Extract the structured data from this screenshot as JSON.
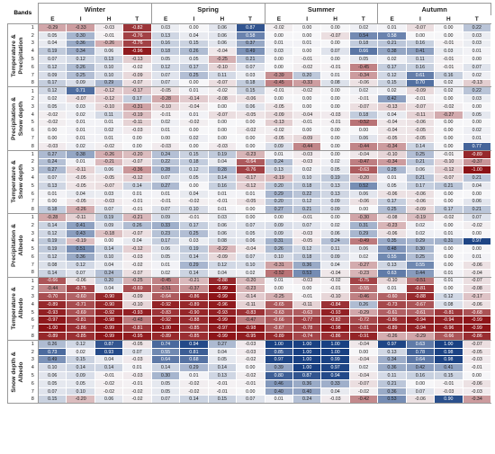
{
  "columns": {
    "bands_label": "Bands",
    "seasons": [
      "Winter",
      "Spring",
      "Summer",
      "Autumn"
    ],
    "subcols": [
      "E",
      "I",
      "H",
      "T"
    ]
  },
  "colors": {
    "positive_strong": "#1f4e8c",
    "negative_strong": "#9b1b1b",
    "neutral": "#f3f4f6"
  },
  "groups": [
    {
      "label": "Temperature & Precipitation",
      "rows": [
        [
          -0.29,
          -0.33,
          -0.03,
          -0.82,
          0.03,
          -0.0,
          0.06,
          0.87,
          -0.02,
          0.0,
          0.0,
          0.02,
          0.01,
          -0.07,
          0.0,
          0.22
        ],
        [
          0.05,
          0.3,
          -0.01,
          -0.76,
          0.13,
          0.04,
          0.06,
          0.58,
          0.0,
          -0.0,
          -0.07,
          0.54,
          0.58,
          0.0,
          0.0,
          0.03
        ],
        [
          0.04,
          0.36,
          -0.26,
          -0.76,
          0.16,
          0.15,
          0.06,
          0.37,
          0.01,
          0.01,
          0.0,
          0.18,
          0.21,
          0.16,
          -0.01,
          0.03
        ],
        [
          0.19,
          0.34,
          0.06,
          -0.96,
          0.18,
          0.26,
          -0.04,
          0.49,
          0.03,
          0.0,
          0.07,
          0.66,
          0.38,
          0.41,
          0.03,
          0.01
        ],
        [
          0.07,
          0.12,
          0.13,
          -0.13,
          0.05,
          0.05,
          -0.25,
          0.21,
          -0.0,
          -0.01,
          0.0,
          0.05,
          0.02,
          0.11,
          -0.01,
          -0.0
        ],
        [
          0.12,
          0.26,
          0.1,
          -0.02,
          0.12,
          0.17,
          -0.1,
          0.07,
          0.0,
          -0.02,
          -0.01,
          -0.45,
          0.17,
          0.16,
          -0.01,
          0.07
        ],
        [
          0.09,
          0.25,
          0.1,
          -0.09,
          0.07,
          0.25,
          0.11,
          0.03,
          -0.39,
          0.2,
          0.01,
          -0.34,
          0.12,
          0.61,
          0.16,
          0.02
        ],
        [
          0.17,
          0.09,
          0.29,
          -0.07,
          0.07,
          0.0,
          -0.07,
          0.18,
          -0.45,
          -0.33,
          0.08,
          -0.06,
          0.15,
          0.7,
          0.02,
          -0.13
        ]
      ]
    },
    {
      "label": "Precipitation & Snow depth",
      "rows": [
        [
          0.12,
          0.71,
          -0.12,
          -0.17,
          -0.05,
          0.01,
          -0.02,
          0.15,
          -0.01,
          -0.02,
          0.0,
          0.02,
          0.02,
          -0.09,
          0.02,
          0.22
        ],
        [
          0.02,
          -0.07,
          -0.12,
          0.17,
          -0.28,
          -0.14,
          -0.08,
          -0.06,
          -0.0,
          -0.0,
          0.0,
          -0.01,
          0.42,
          -0.01,
          0.0,
          0.03
        ],
        [
          0.05,
          0.03,
          -0.1,
          -0.31,
          -0.1,
          -0.04,
          0.0,
          0.06,
          -0.05,
          -0.0,
          0.0,
          -0.07,
          -0.13,
          -0.07,
          -0.02,
          0.0
        ],
        [
          -0.02,
          0.02,
          0.11,
          -0.19,
          -0.01,
          0.01,
          -0.07,
          -0.05,
          -0.09,
          -0.04,
          -0.03,
          0.18,
          0.04,
          -0.11,
          -0.27,
          0.05
        ],
        [
          -0.02,
          0.01,
          0.01,
          -0.11,
          0.02,
          -0.02,
          -0.0,
          -0.0,
          -0.13,
          -0.01,
          -0.01,
          -0.52,
          -0.04,
          -0.06,
          -0.0,
          -0.0
        ],
        [
          0.0,
          0.01,
          0.02,
          -0.03,
          0.01,
          -0.0,
          -0.0,
          -0.02,
          -0.02,
          -0.0,
          -0.0,
          -0.0,
          -0.04,
          -0.05,
          -0.0,
          0.02
        ],
        [
          0.0,
          0.01,
          0.01,
          -0.0,
          -0.0,
          0.02,
          0.0,
          -0.0,
          -0.05,
          -0.09,
          0.0,
          0.06,
          -0.05,
          -0.05,
          0.0,
          0.01
        ],
        [
          -0.03,
          0.02,
          -0.02,
          -0.0,
          -0.03,
          0.0,
          -0.03,
          0.0,
          0.09,
          -0.44,
          0.0,
          -0.44,
          -0.34,
          0.14,
          0.0,
          0.77
        ]
      ]
    },
    {
      "label": "Temperature & Snow depth",
      "rows": [
        [
          0.27,
          0.38,
          -0.26,
          -0.2,
          0.24,
          0.15,
          0.19,
          -0.23,
          0.01,
          -0.03,
          0.0,
          -0.04,
          -0.1,
          0.25,
          -0.01,
          -0.89
        ],
        [
          0.24,
          0.01,
          -0.21,
          -0.07,
          0.22,
          0.18,
          0.04,
          -0.64,
          0.24,
          -0.03,
          0.02,
          -0.47,
          -0.34,
          0.21,
          -0.1,
          -0.37
        ],
        [
          0.27,
          -0.11,
          0.06,
          -0.36,
          0.28,
          0.12,
          0.28,
          -0.76,
          0.13,
          0.02,
          0.05,
          -0.63,
          0.28,
          0.06,
          -0.12,
          -1.0
        ],
        [
          0.07,
          -0.05,
          -0.05,
          -0.12,
          0.07,
          0.05,
          0.14,
          -0.17,
          -0.19,
          0.1,
          0.19,
          -0.2,
          0.01,
          0.21,
          -0.07,
          0.21
        ],
        [
          0.13,
          -0.05,
          -0.07,
          0.14,
          0.27,
          0.0,
          0.16,
          -0.12,
          0.2,
          0.18,
          0.13,
          0.52,
          0.05,
          0.17,
          0.21,
          0.04
        ],
        [
          0.01,
          0.04,
          0.03,
          0.01,
          0.01,
          0.04,
          0.01,
          0.01,
          0.29,
          0.22,
          0.13,
          0.06,
          -0.06,
          -0.06,
          0.0,
          0.0
        ],
        [
          0.0,
          -0.05,
          -0.03,
          -0.01,
          -0.01,
          -0.02,
          -0.01,
          -0.05,
          0.2,
          0.12,
          0.09,
          -0.06,
          0.17,
          -0.06,
          0.0,
          0.06
        ],
        [
          0.18,
          -0.26,
          0.07,
          -0.01,
          0.07,
          0.1,
          0.01,
          -0.0,
          0.27,
          0.21,
          0.09,
          -0.0,
          0.25,
          -0.09,
          0.17,
          0.21
        ]
      ]
    },
    {
      "label": "Precipitation & Albedo",
      "rows": [
        [
          -0.28,
          -0.11,
          0.19,
          -0.21,
          0.09,
          -0.01,
          0.03,
          0.0,
          -0.0,
          -0.01,
          0.0,
          -0.3,
          -0.08,
          -0.19,
          -0.02,
          0.07
        ],
        [
          0.14,
          0.41,
          0.09,
          0.26,
          0.33,
          0.17,
          0.06,
          0.07,
          0.09,
          0.07,
          0.02,
          0.31,
          -0.23,
          0.02,
          -0.0,
          -0.02
        ],
        [
          0.12,
          0.43,
          -0.18,
          -0.07,
          0.23,
          0.25,
          0.06,
          0.05,
          0.09,
          -0.03,
          0.06,
          0.29,
          -0.06,
          0.02,
          0.01,
          -0.0
        ],
        [
          0.19,
          -0.19,
          0.0,
          0.04,
          0.17,
          0.03,
          0.08,
          0.06,
          0.31,
          -0.05,
          0.24,
          -0.49,
          0.35,
          0.29,
          0.31,
          0.97
        ],
        [
          0.19,
          0.51,
          0.14,
          -0.12,
          0.06,
          0.19,
          -0.22,
          -0.04,
          0.26,
          0.12,
          0.11,
          0.06,
          0.48,
          0.3,
          -0.0,
          0.0
        ],
        [
          0.12,
          0.36,
          0.1,
          -0.03,
          0.05,
          0.14,
          -0.09,
          0.07,
          0.1,
          0.18,
          0.09,
          0.02,
          0.55,
          0.25,
          0.0,
          0.01
        ],
        [
          0.08,
          0.12,
          0.04,
          -0.02,
          0.01,
          0.29,
          0.12,
          0.1,
          -0.31,
          0.36,
          0.04,
          -0.27,
          0.13,
          0.55,
          -0.0,
          -0.06
        ],
        [
          0.14,
          0.07,
          0.24,
          -0.07,
          0.02,
          0.14,
          0.04,
          0.02,
          -0.52,
          0.53,
          -0.04,
          -0.23,
          0.63,
          0.44,
          0.01,
          -0.04
        ]
      ]
    },
    {
      "label": "Temperature & Albedo",
      "rows": [
        [
          -0.66,
          -0.06,
          0.2,
          -0.25,
          -0.45,
          -0.21,
          -0.88,
          -0.2,
          0.01,
          -0.03,
          -0.02,
          -0.75,
          -0.1,
          -0.51,
          0.01,
          -0.07
        ],
        [
          -0.44,
          -0.75,
          0.04,
          -0.69,
          -0.51,
          -0.37,
          -0.99,
          -0.23,
          0.0,
          -0.0,
          -0.01,
          -0.55,
          0.01,
          -0.81,
          0.0,
          -0.08
        ],
        [
          -0.7,
          -0.6,
          -0.9,
          -0.09,
          -0.64,
          -0.86,
          -0.99,
          -0.14,
          -0.25,
          -0.01,
          -0.1,
          -0.46,
          -0.6,
          -0.88,
          0.12,
          -0.17
        ],
        [
          -0.89,
          -0.71,
          -0.9,
          -0.1,
          -0.92,
          -0.89,
          -0.96,
          -0.11,
          -0.65,
          -0.11,
          -0.84,
          0.26,
          -0.73,
          -0.67,
          0.08,
          -0.06
        ],
        [
          -0.93,
          -0.69,
          -0.92,
          -0.93,
          -0.83,
          -0.9,
          -0.93,
          -0.83,
          -0.63,
          -0.63,
          -0.93,
          -0.29,
          -0.61,
          -0.61,
          -0.81,
          -0.68
        ],
        [
          -0.97,
          -0.81,
          -0.98,
          -0.48,
          -0.92,
          -0.88,
          -0.99,
          -0.47,
          -0.66,
          -0.77,
          -0.82,
          -0.72,
          -0.86,
          -0.94,
          -0.94,
          -0.99
        ],
        [
          -1.0,
          -0.86,
          -0.99,
          -0.81,
          -1.0,
          -0.85,
          -0.97,
          -0.98,
          -0.67,
          -0.78,
          -0.98,
          -0.81,
          -0.89,
          -0.94,
          -0.96,
          -0.99
        ],
        [
          -0.89,
          -0.85,
          -0.99,
          -0.95,
          -0.89,
          -0.85,
          -0.99,
          -0.95,
          -0.89,
          -0.74,
          -0.86,
          -0.91,
          -0.26,
          -0.29,
          -0.66,
          -0.86
        ]
      ]
    },
    {
      "label": "Snow depth & Albedo",
      "rows": [
        [
          0.26,
          0.12,
          0.87,
          -0.05,
          0.74,
          0.94,
          0.27,
          -0.03,
          1.0,
          1.0,
          1.0,
          -0.04,
          0.97,
          0.63,
          1.0,
          -0.07
        ],
        [
          0.73,
          0.02,
          0.93,
          0.07,
          0.55,
          0.81,
          0.04,
          -0.03,
          0.85,
          1.0,
          1.0,
          -0.0,
          0.13,
          0.78,
          0.98,
          -0.05
        ],
        [
          0.49,
          0.15,
          0.04,
          -0.03,
          0.64,
          0.68,
          0.05,
          -0.02,
          0.97,
          1.0,
          0.99,
          -0.04,
          0.34,
          0.64,
          0.98,
          -0.03
        ],
        [
          0.1,
          0.14,
          0.14,
          0.01,
          0.14,
          0.29,
          0.14,
          -0.0,
          0.39,
          1.0,
          0.97,
          0.02,
          0.36,
          0.42,
          0.41,
          -0.01
        ],
        [
          0.06,
          0.09,
          -0.01,
          -0.03,
          0.3,
          0.01,
          0.13,
          -0.02,
          0.8,
          0.87,
          0.94,
          -0.04,
          0.11,
          0.16,
          0.15,
          -0.0
        ],
        [
          0.05,
          0.05,
          -0.02,
          -0.01,
          0.05,
          -0.02,
          -0.01,
          -0.01,
          0.46,
          0.36,
          0.33,
          -0.07,
          0.21,
          0.0,
          -0.01,
          -0.06
        ],
        [
          0.07,
          0.1,
          -0.02,
          -0.02,
          0.05,
          -0.02,
          -0.01,
          -0.0,
          0.4,
          0.4,
          0.04,
          -0.02,
          0.36,
          0.07,
          -0.03,
          -0.03
        ],
        [
          0.15,
          -0.2,
          0.06,
          -0.02,
          0.07,
          0.14,
          0.15,
          0.07,
          0.01,
          0.24,
          -0.03,
          -0.42,
          0.53,
          -0.06,
          0.9,
          -0.34
        ]
      ]
    }
  ]
}
